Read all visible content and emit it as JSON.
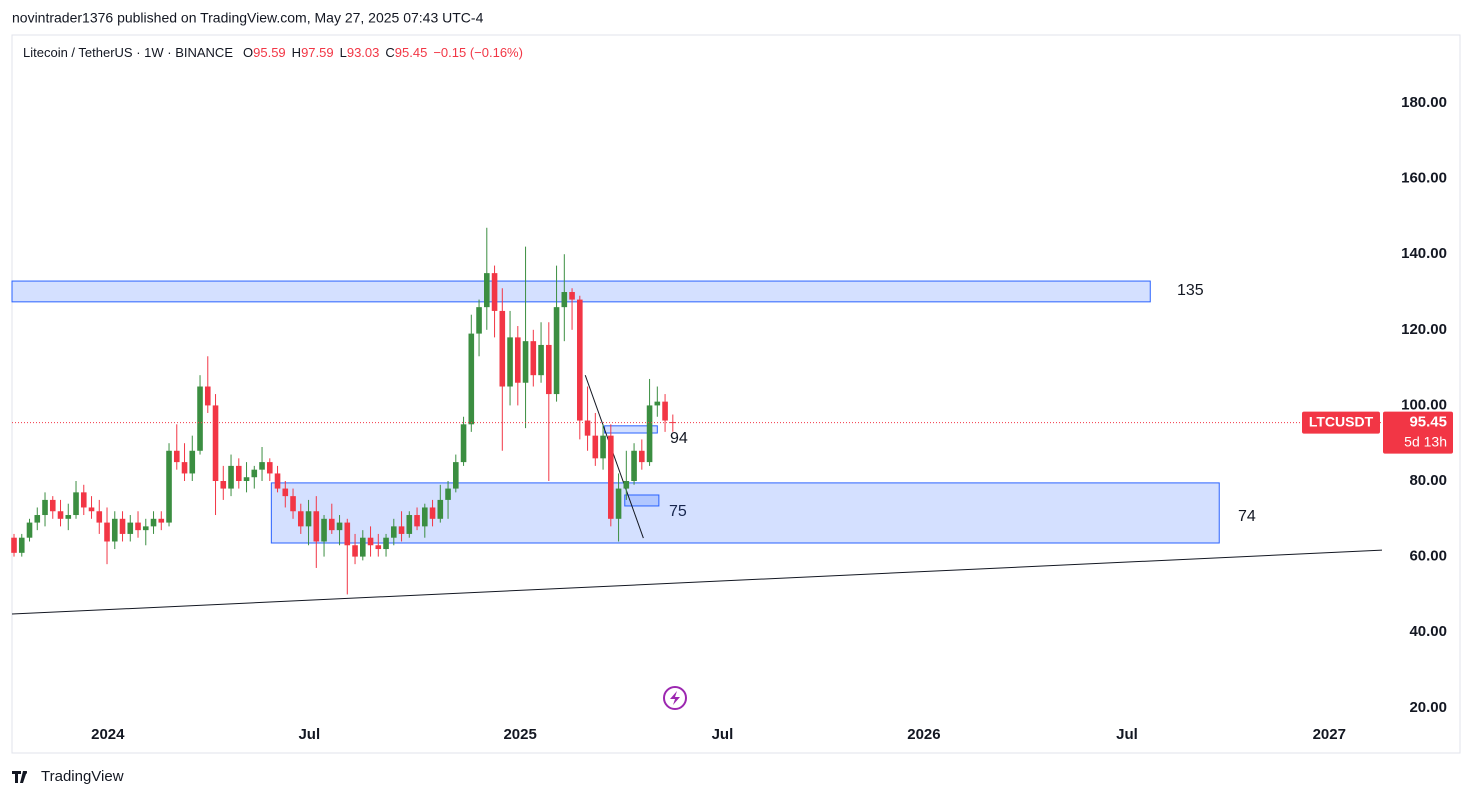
{
  "page": {
    "byline": "novintrader1376 published on TradingView.com, May 27, 2025 07:43 UTC-4",
    "brand": "TradingView"
  },
  "chart_data": {
    "type": "candlestick",
    "title": "Litecoin / TetherUS · 1W · BINANCE",
    "ohlc_letters": [
      "O",
      "H",
      "L",
      "C"
    ],
    "change": "−0.15 (−0.16%)",
    "symbol": "LTCUSDT",
    "countdown": "5d 13h",
    "up_color": "#3b8e41",
    "down_color": "#f23645",
    "zone_color": "#2962ff",
    "grid": false,
    "x": [
      0,
      1,
      2,
      3,
      4,
      5,
      6,
      7,
      8,
      9,
      10,
      11,
      12,
      13,
      14,
      15,
      16,
      17,
      18,
      19,
      20,
      21,
      22,
      23,
      24,
      25,
      26,
      27,
      28,
      29,
      30,
      31,
      32,
      33,
      34,
      35,
      36,
      37,
      38,
      39,
      40,
      41,
      42,
      43,
      44,
      45,
      46,
      47,
      48,
      49,
      50,
      51,
      52,
      53,
      54,
      55,
      56,
      57,
      58,
      59,
      60,
      61,
      62,
      63,
      64,
      65,
      66,
      67,
      68,
      69,
      70,
      71,
      72,
      73,
      74,
      75,
      76,
      77,
      78,
      79,
      80,
      81,
      82,
      83,
      84,
      85
    ],
    "open": [
      65,
      61,
      65,
      69,
      71,
      75,
      72,
      70,
      71,
      77,
      73,
      72,
      69,
      64,
      70,
      66,
      69,
      67,
      68,
      70,
      69,
      88,
      85,
      82,
      88,
      105,
      100,
      80,
      78,
      84,
      80,
      81,
      83,
      85,
      82,
      78,
      76,
      72,
      68,
      72,
      64,
      70,
      67,
      69,
      63,
      60,
      65,
      63,
      62,
      65,
      68,
      66,
      71,
      68,
      73,
      70,
      75,
      78,
      85,
      95,
      119,
      126,
      135,
      125,
      105,
      118,
      106,
      117,
      108,
      116,
      103,
      126,
      130,
      128,
      96,
      92,
      86,
      92,
      70,
      78,
      80,
      88,
      85,
      100,
      101,
      95.59
    ],
    "high": [
      66,
      66,
      70,
      73,
      77,
      76,
      75,
      74,
      80,
      79,
      76,
      75,
      73,
      72,
      72,
      71,
      72,
      70,
      72,
      72,
      90,
      95,
      90,
      92,
      108,
      113,
      103,
      84,
      87,
      86,
      85,
      84,
      89,
      86,
      84,
      80,
      78,
      74,
      75,
      76,
      71,
      74,
      71,
      70,
      66,
      67,
      68,
      66,
      66,
      70,
      72,
      72,
      73,
      74,
      75,
      79,
      80,
      87,
      97,
      124,
      128,
      147,
      137,
      131,
      125,
      121,
      142,
      120,
      122,
      122,
      137,
      140,
      131,
      129,
      105,
      98,
      95,
      95,
      82,
      88,
      90,
      91,
      107,
      105,
      103,
      97.59
    ],
    "low": [
      60,
      60,
      64,
      67,
      68,
      70,
      68,
      67,
      70,
      71,
      70,
      66,
      58,
      62,
      64,
      64,
      65,
      63,
      66,
      67,
      68,
      83,
      80,
      80,
      87,
      98,
      71,
      75,
      76,
      78,
      77,
      78,
      80,
      80,
      77,
      73,
      70,
      66,
      63,
      57,
      60,
      66,
      63,
      50,
      58,
      59,
      60,
      60,
      60,
      63,
      64,
      65,
      67,
      65,
      68,
      69,
      70,
      77,
      84,
      93,
      113,
      120,
      118,
      88,
      100,
      100,
      94,
      105,
      106,
      80,
      101,
      117,
      120,
      91,
      88,
      84,
      83,
      68,
      64,
      75,
      79,
      83,
      84,
      97,
      93,
      93.03
    ],
    "close": [
      61,
      65,
      69,
      71,
      75,
      72,
      70,
      71,
      77,
      73,
      72,
      69,
      64,
      70,
      66,
      69,
      67,
      68,
      70,
      69,
      88,
      85,
      82,
      88,
      105,
      100,
      80,
      78,
      84,
      80,
      81,
      83,
      85,
      82,
      78,
      76,
      72,
      68,
      72,
      64,
      70,
      67,
      69,
      63,
      60,
      65,
      63,
      62,
      65,
      68,
      66,
      71,
      68,
      73,
      70,
      75,
      78,
      85,
      95,
      119,
      126,
      135,
      125,
      105,
      118,
      106,
      117,
      108,
      116,
      103,
      126,
      130,
      128,
      96,
      92,
      86,
      92,
      70,
      78,
      80,
      88,
      85,
      100,
      101,
      96,
      95.45
    ],
    "xlim": [
      -0.26,
      176.5
    ],
    "xticks": [
      {
        "value": 12.1,
        "label": "2024"
      },
      {
        "value": 38.1,
        "label": "Jul"
      },
      {
        "value": 65.3,
        "label": "2025"
      },
      {
        "value": 91.4,
        "label": "Jul"
      },
      {
        "value": 117.4,
        "label": "2026"
      },
      {
        "value": 143.6,
        "label": "Jul"
      },
      {
        "value": 169.7,
        "label": "2027"
      }
    ],
    "ylim": [
      17.3,
      198
    ],
    "yticks": [
      {
        "value": 20,
        "label": "20.00"
      },
      {
        "value": 40,
        "label": "40.00"
      },
      {
        "value": 60,
        "label": "60.00"
      },
      {
        "value": 80,
        "label": "80.00"
      },
      {
        "value": 100,
        "label": "100.00"
      },
      {
        "value": 120,
        "label": "120.00"
      },
      {
        "value": 140,
        "label": "140.00"
      },
      {
        "value": 160,
        "label": "160.00"
      },
      {
        "value": 180,
        "label": "180.00"
      }
    ],
    "zones": [
      {
        "x": [
          -0.26,
          146.6
        ],
        "y": [
          127.4,
          132.9
        ]
      },
      {
        "x": [
          33.2,
          155.5
        ],
        "y": [
          63.6,
          79.5
        ]
      },
      {
        "x": [
          76.2,
          83
        ],
        "y": [
          92.7,
          94.6
        ]
      },
      {
        "x": [
          78.8,
          83.2
        ],
        "y": [
          73.4,
          76.3
        ]
      }
    ],
    "lines": [
      {
        "x": [
          -0.26,
          176.5
        ],
        "y": [
          44.8,
          61.7
        ]
      },
      {
        "x": [
          73.7,
          81.2
        ],
        "y": [
          108,
          64.9
        ]
      }
    ],
    "annotations": [
      "135",
      "94",
      "75",
      "74"
    ]
  }
}
